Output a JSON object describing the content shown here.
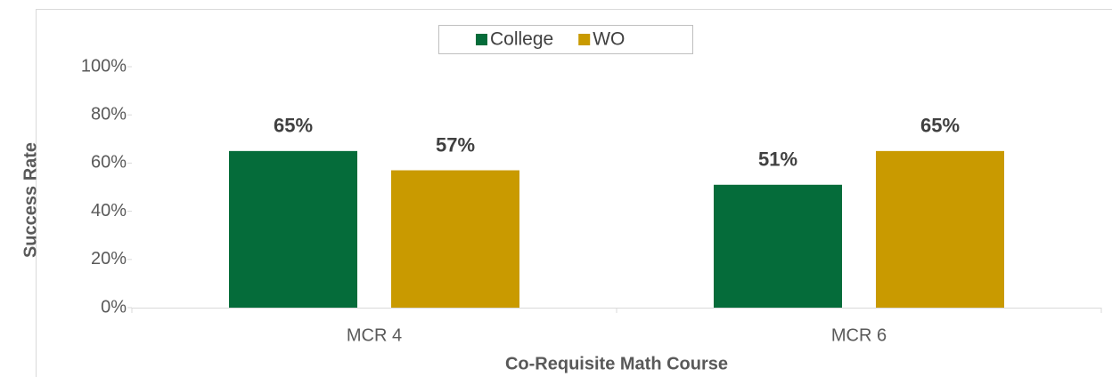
{
  "chart_data": {
    "type": "bar",
    "x_label": "Co-Requisite Math Course",
    "y_label": "Success Rate",
    "categories": [
      "MCR 4",
      "MCR 6"
    ],
    "series": [
      {
        "name": "College",
        "color": "#056c3a",
        "values": [
          65,
          51
        ],
        "value_labels": [
          "65%",
          "51%"
        ]
      },
      {
        "name": "WO",
        "color": "#c99a00",
        "values": [
          57,
          65
        ],
        "value_labels": [
          "57%",
          "65%"
        ]
      }
    ],
    "ylim": [
      0,
      100
    ],
    "yticks": [
      {
        "value": 0,
        "label": "0%"
      },
      {
        "value": 20,
        "label": "20%"
      },
      {
        "value": 40,
        "label": "40%"
      },
      {
        "value": 60,
        "label": "60%"
      },
      {
        "value": 80,
        "label": "80%"
      },
      {
        "value": 100,
        "label": "100%"
      }
    ],
    "grid": false,
    "legend": "top"
  }
}
